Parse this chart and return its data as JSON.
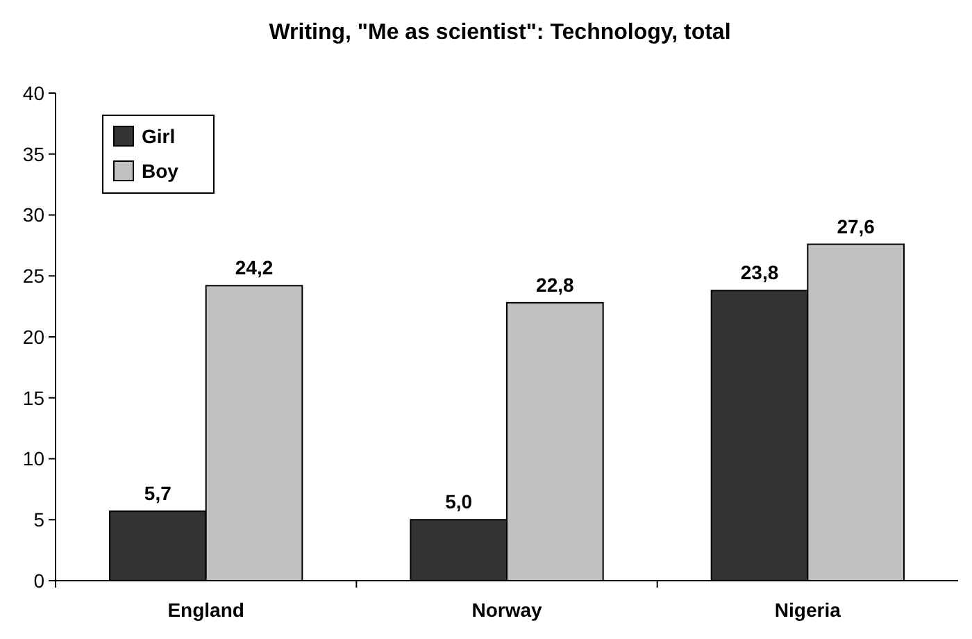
{
  "chart_data": {
    "type": "bar",
    "title": "Writing, \"Me as scientist\": Technology, total",
    "categories": [
      "England",
      "Norway",
      "Nigeria"
    ],
    "series": [
      {
        "name": "Girl",
        "color": "#333333",
        "values": [
          5.7,
          5.0,
          23.8
        ],
        "value_labels": [
          "5,7",
          "5,0",
          "23,8"
        ]
      },
      {
        "name": "Boy",
        "color": "#c0c0c0",
        "values": [
          24.2,
          22.8,
          27.6
        ],
        "value_labels": [
          "24,2",
          "22,8",
          "27,6"
        ]
      }
    ],
    "ylim": [
      0,
      40
    ],
    "yticks": [
      0,
      5,
      10,
      15,
      20,
      25,
      30,
      35,
      40
    ],
    "grid": false,
    "legend": "top left"
  }
}
